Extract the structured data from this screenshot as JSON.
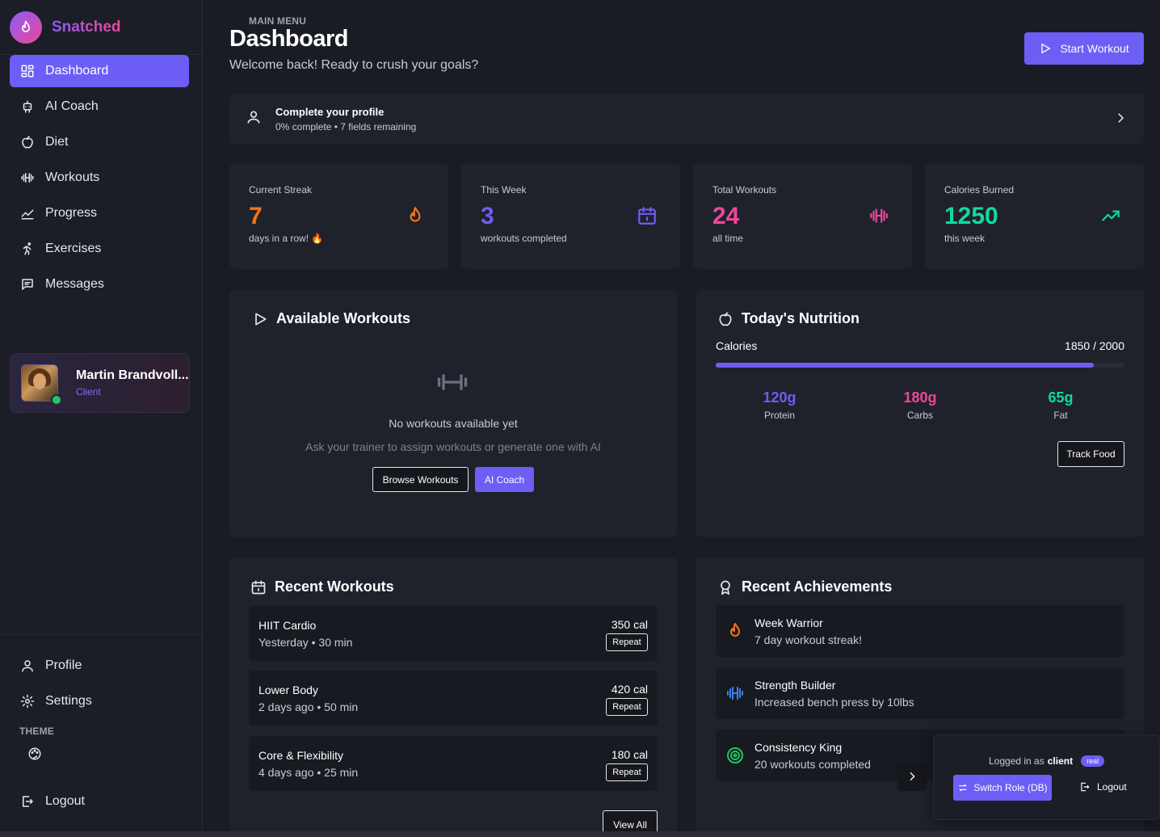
{
  "brand": {
    "name": "Snatched"
  },
  "sidebar": {
    "main_menu_label": "MAIN MENU",
    "items": [
      {
        "label": "Dashboard",
        "icon": "dashboard-icon"
      },
      {
        "label": "AI Coach",
        "icon": "bot-icon"
      },
      {
        "label": "Diet",
        "icon": "apple-icon"
      },
      {
        "label": "Workouts",
        "icon": "dumbbell-icon"
      },
      {
        "label": "Progress",
        "icon": "chart-line-icon"
      },
      {
        "label": "Exercises",
        "icon": "running-icon"
      },
      {
        "label": "Messages",
        "icon": "message-icon"
      }
    ],
    "user": {
      "name": "Martin Brandvoll...",
      "role": "Client"
    },
    "bottom": {
      "profile": "Profile",
      "settings": "Settings",
      "theme_label": "THEME",
      "logout": "Logout"
    }
  },
  "header": {
    "title": "Dashboard",
    "subtitle": "Welcome back! Ready to crush your goals?",
    "start_button": "Start Workout"
  },
  "profile_banner": {
    "title": "Complete your profile",
    "subtitle": "0% complete • 7 fields remaining"
  },
  "stats": [
    {
      "label": "Current Streak",
      "value": "7",
      "sub": "days in a row! 🔥",
      "color": "#f97316",
      "icon": "flame-icon"
    },
    {
      "label": "This Week",
      "value": "3",
      "sub": "workouts completed",
      "color": "#6d5ef5",
      "icon": "calendar-icon"
    },
    {
      "label": "Total Workouts",
      "value": "24",
      "sub": "all time",
      "color": "#ec4899",
      "icon": "dumbbell-icon"
    },
    {
      "label": "Calories Burned",
      "value": "1250",
      "sub": "this week",
      "color": "#10d9a0",
      "icon": "trending-up-icon"
    }
  ],
  "available_workouts": {
    "title": "Available Workouts",
    "empty_title": "No workouts available yet",
    "empty_sub": "Ask your trainer to assign workouts or generate one with AI",
    "browse_button": "Browse Workouts",
    "ai_button": "AI Coach"
  },
  "nutrition": {
    "title": "Today's Nutrition",
    "calories_label": "Calories",
    "calories_text": "1850 / 2000",
    "calories_progress": 0.925,
    "macros": [
      {
        "value": "120g",
        "label": "Protein",
        "color": "#6d5ef5"
      },
      {
        "value": "180g",
        "label": "Carbs",
        "color": "#ec4899"
      },
      {
        "value": "65g",
        "label": "Fat",
        "color": "#10d9a0"
      }
    ],
    "track_button": "Track Food"
  },
  "recent_workouts": {
    "title": "Recent Workouts",
    "items": [
      {
        "name": "HIIT Cardio",
        "meta": "Yesterday • 30 min",
        "cal": "350 cal",
        "action": "Repeat"
      },
      {
        "name": "Lower Body",
        "meta": "2 days ago • 50 min",
        "cal": "420 cal",
        "action": "Repeat"
      },
      {
        "name": "Core & Flexibility",
        "meta": "4 days ago • 25 min",
        "cal": "180 cal",
        "action": "Repeat"
      }
    ],
    "view_all": "View All"
  },
  "achievements": {
    "title": "Recent Achievements",
    "items": [
      {
        "name": "Week Warrior",
        "desc": "7 day workout streak!",
        "icon": "flame-icon",
        "color": "#f97316"
      },
      {
        "name": "Strength Builder",
        "desc": "Increased bench press by 10lbs",
        "icon": "dumbbell-icon",
        "color": "#3b82f6"
      },
      {
        "name": "Consistency King",
        "desc": "20 workouts completed",
        "icon": "target-icon",
        "color": "#22c55e"
      }
    ]
  },
  "role_switcher": {
    "logged_in_prefix": "Logged in as",
    "role": "client",
    "badge": "real",
    "switch_button": "Switch Role (DB)",
    "logout": "Logout"
  }
}
